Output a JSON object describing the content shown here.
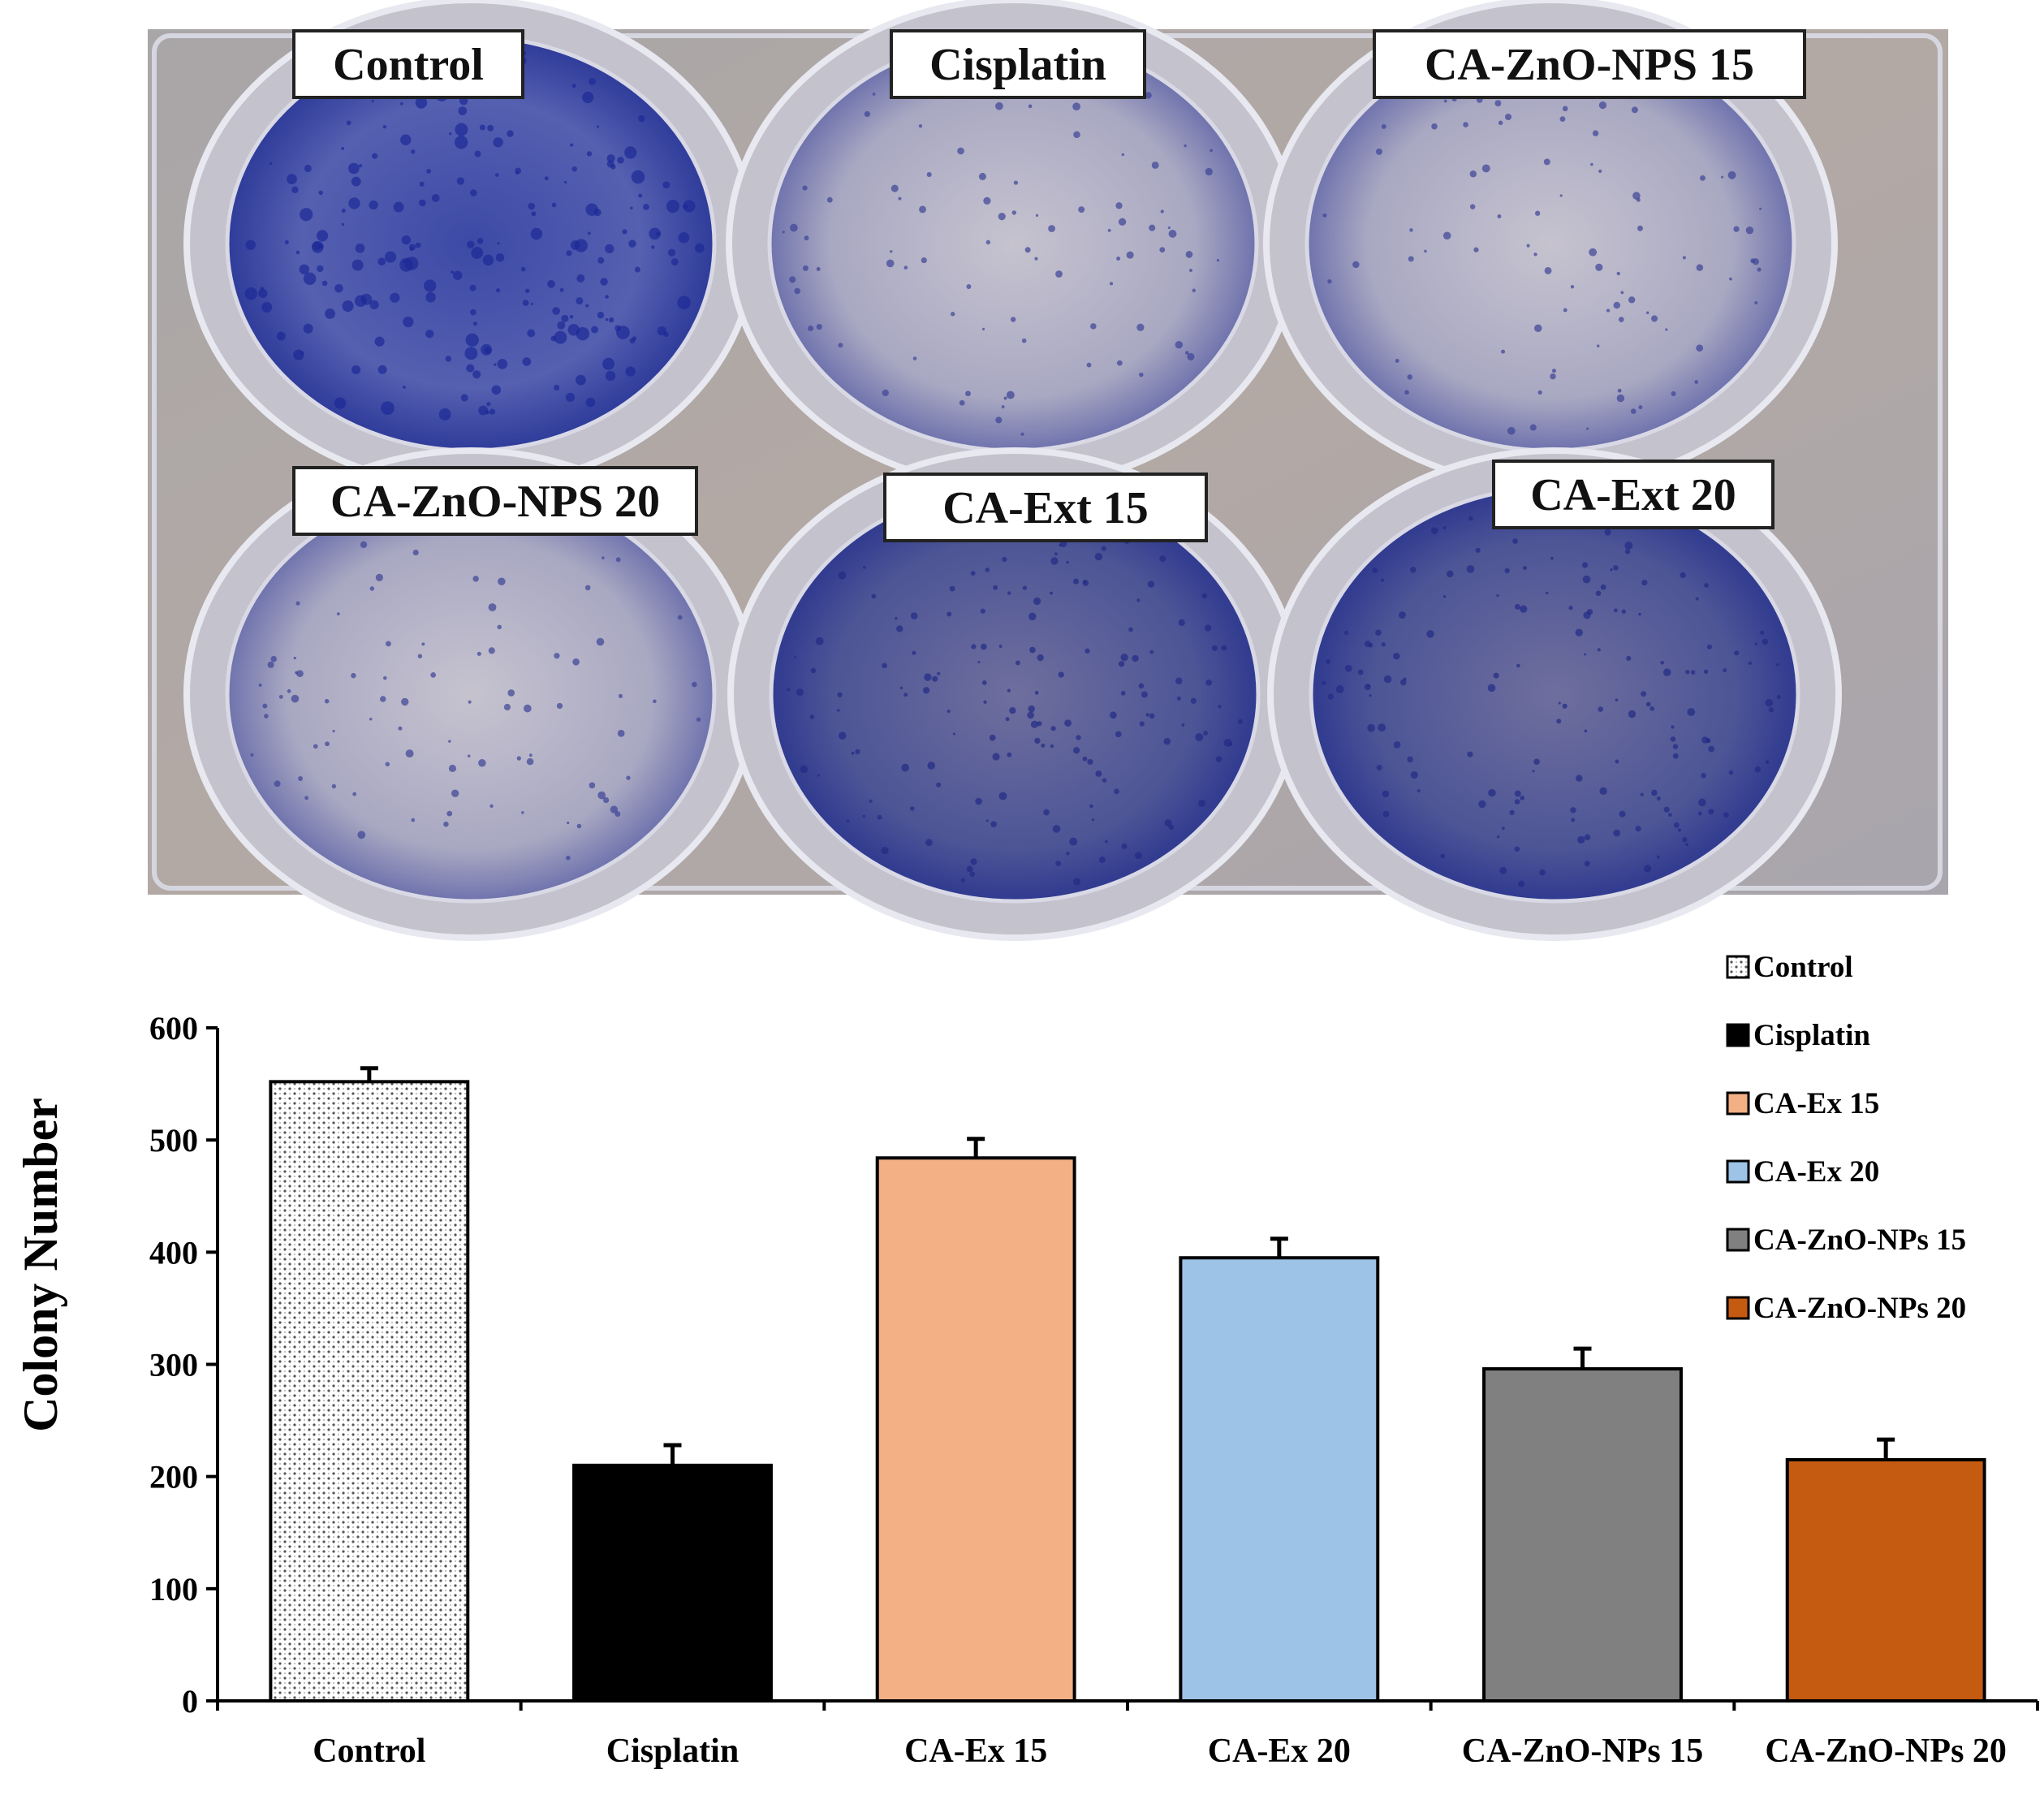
{
  "photo": {
    "wells": [
      {
        "label": "Control",
        "stain": "heavy"
      },
      {
        "label": "Cisplatin",
        "stain": "light"
      },
      {
        "label": "CA-ZnO-NPS 15",
        "stain": "light"
      },
      {
        "label": "CA-ZnO-NPS 20",
        "stain": "light"
      },
      {
        "label": "CA-Ext 15",
        "stain": "medium"
      },
      {
        "label": "CA-Ext 20",
        "stain": "medium"
      }
    ]
  },
  "chart_data": {
    "type": "bar",
    "title": "",
    "xlabel": "",
    "ylabel": "Colony Number",
    "ylim": [
      0,
      600
    ],
    "yticks": [
      0,
      100,
      200,
      300,
      400,
      500,
      600
    ],
    "grid": false,
    "legend_position": "top-right",
    "categories": [
      "Control",
      "Cisplatin",
      "CA-Ex 15",
      "CA-Ex 20",
      "CA-ZnO-NPs 15",
      "CA-ZnO-NPs 20"
    ],
    "values": [
      552,
      210,
      484,
      395,
      296,
      215
    ],
    "errors": [
      12,
      18,
      17,
      17,
      18,
      18
    ],
    "legend": [
      "Control",
      "Cisplatin",
      "CA-Ex 15",
      "CA-Ex 20",
      "CA-ZnO-NPs 15",
      "CA-ZnO-NPs 20"
    ],
    "colors": [
      "pattern-dots",
      "#000000",
      "#f2b084",
      "#9dc3e6",
      "#808080",
      "#c55a11"
    ]
  }
}
